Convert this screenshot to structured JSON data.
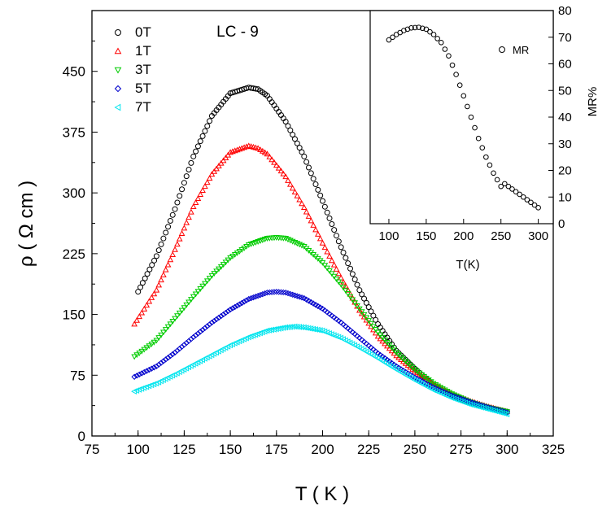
{
  "chart_data": [
    {
      "type": "scatter",
      "title": "LC - 9",
      "xlabel": "T ( K )",
      "ylabel": "ρ ( Ω cm )",
      "xlim": [
        75,
        325
      ],
      "ylim": [
        0,
        525
      ],
      "xticks": [
        "75",
        "100",
        "125",
        "150",
        "175",
        "200",
        "225",
        "250",
        "275",
        "300",
        "325"
      ],
      "yticks": [
        "0",
        "75",
        "150",
        "225",
        "300",
        "375",
        "450"
      ],
      "legend_position": "top-left",
      "series": [
        {
          "name": "0T",
          "color": "#000000",
          "marker": "circle",
          "x": [
            100,
            110,
            120,
            130,
            140,
            150,
            160,
            165,
            170,
            180,
            190,
            200,
            210,
            220,
            230,
            240,
            250,
            260,
            270,
            280,
            290,
            300
          ],
          "y": [
            178,
            222,
            280,
            345,
            395,
            423,
            430,
            428,
            420,
            388,
            345,
            290,
            233,
            180,
            138,
            105,
            83,
            63,
            50,
            41,
            35,
            30
          ]
        },
        {
          "name": "1T",
          "color": "#ff0000",
          "marker": "triangle-up",
          "x": [
            98,
            110,
            120,
            130,
            140,
            150,
            160,
            165,
            170,
            180,
            190,
            200,
            210,
            220,
            230,
            240,
            250,
            260,
            270,
            280,
            290,
            300
          ],
          "y": [
            138,
            180,
            230,
            283,
            323,
            350,
            358,
            355,
            348,
            320,
            282,
            238,
            195,
            155,
            123,
            99,
            80,
            64,
            52,
            43,
            36,
            30
          ]
        },
        {
          "name": "3T",
          "color": "#00cc00",
          "marker": "triangle-down",
          "x": [
            98,
            110,
            120,
            130,
            140,
            150,
            160,
            170,
            175,
            180,
            190,
            200,
            210,
            220,
            230,
            240,
            250,
            260,
            270,
            280,
            290,
            300
          ],
          "y": [
            98,
            118,
            145,
            172,
            198,
            220,
            236,
            244,
            245,
            244,
            234,
            214,
            187,
            157,
            128,
            103,
            82,
            65,
            52,
            42,
            35,
            30
          ]
        },
        {
          "name": "5T",
          "color": "#0000cc",
          "marker": "diamond",
          "x": [
            98,
            110,
            120,
            130,
            140,
            150,
            160,
            170,
            175,
            180,
            190,
            200,
            210,
            220,
            230,
            240,
            250,
            260,
            270,
            280,
            290,
            300
          ],
          "y": [
            73,
            86,
            103,
            122,
            140,
            156,
            169,
            177,
            178,
            177,
            170,
            157,
            140,
            121,
            102,
            86,
            72,
            60,
            50,
            42,
            35,
            29
          ]
        },
        {
          "name": "7T",
          "color": "#00e5ee",
          "marker": "triangle-left",
          "x": [
            98,
            110,
            120,
            130,
            140,
            150,
            160,
            170,
            180,
            185,
            190,
            200,
            210,
            220,
            230,
            240,
            250,
            260,
            270,
            280,
            290,
            300
          ],
          "y": [
            55,
            65,
            76,
            88,
            100,
            112,
            122,
            130,
            134,
            135,
            134,
            130,
            121,
            109,
            96,
            82,
            69,
            57,
            47,
            39,
            33,
            27
          ]
        }
      ]
    },
    {
      "type": "scatter",
      "title": "",
      "xlabel": "T(K)",
      "ylabel": "MR%",
      "xlim": [
        75,
        320
      ],
      "ylim": [
        0,
        80
      ],
      "xticks": [
        "100",
        "150",
        "200",
        "250",
        "300"
      ],
      "yticks": [
        "0",
        "10",
        "20",
        "30",
        "40",
        "50",
        "60",
        "70",
        "80"
      ],
      "legend_position": "top-right",
      "series": [
        {
          "name": "MR",
          "color": "#000000",
          "marker": "circle",
          "x": [
            100,
            110,
            120,
            130,
            140,
            150,
            160,
            170,
            180,
            190,
            200,
            210,
            220,
            230,
            240,
            250,
            255,
            260,
            270,
            280,
            290,
            300
          ],
          "y": [
            69,
            71,
            72.5,
            73.5,
            73.7,
            73,
            71,
            68,
            63,
            56,
            48,
            40,
            32,
            25,
            19,
            14,
            15,
            14,
            12,
            10,
            8,
            6
          ]
        }
      ]
    }
  ]
}
